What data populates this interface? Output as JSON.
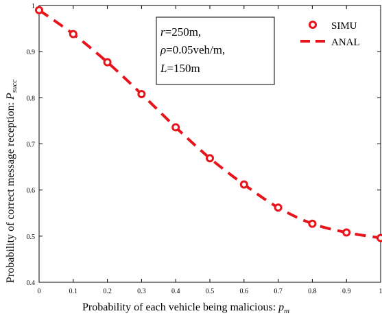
{
  "chart_data": {
    "type": "line",
    "xlabel": "Probability of each vehicle being malicious:",
    "xlabel_symbol": "p",
    "xlabel_symbol_sub": "m",
    "ylabel": "Probability of correct message reception:",
    "ylabel_symbol": "P",
    "ylabel_symbol_sub": "succ",
    "xlim": [
      0,
      1
    ],
    "ylim": [
      0.4,
      1.0
    ],
    "x_ticks": [
      "0",
      "0.1",
      "0.2",
      "0.3",
      "0.4",
      "0.5",
      "0.6",
      "0.7",
      "0.8",
      "0.9",
      "1"
    ],
    "y_ticks": [
      "0.4",
      "0.5",
      "0.6",
      "0.7",
      "0.8",
      "0.9",
      "1"
    ],
    "grid": false,
    "legend_position": "top-right",
    "series": [
      {
        "name": "SIMU",
        "style": "circle-markers",
        "color": "#e8141c",
        "x": [
          0,
          0.1,
          0.2,
          0.3,
          0.4,
          0.5,
          0.6,
          0.7,
          0.8,
          0.9,
          1.0
        ],
        "y": [
          0.99,
          0.938,
          0.877,
          0.808,
          0.736,
          0.669,
          0.612,
          0.562,
          0.527,
          0.508,
          0.496
        ]
      },
      {
        "name": "ANAL",
        "style": "dashed-line",
        "color": "#e8141c",
        "x": [
          0,
          0.1,
          0.2,
          0.3,
          0.4,
          0.5,
          0.6,
          0.7,
          0.8,
          0.9,
          1.0
        ],
        "y": [
          0.99,
          0.938,
          0.877,
          0.808,
          0.736,
          0.669,
          0.612,
          0.562,
          0.527,
          0.508,
          0.496
        ]
      }
    ],
    "annotation": [
      {
        "var": "r",
        "text": "=250m,"
      },
      {
        "var": "ρ",
        "text": "=0.05veh/m,"
      },
      {
        "var": "L",
        "text": "=150m"
      }
    ]
  }
}
